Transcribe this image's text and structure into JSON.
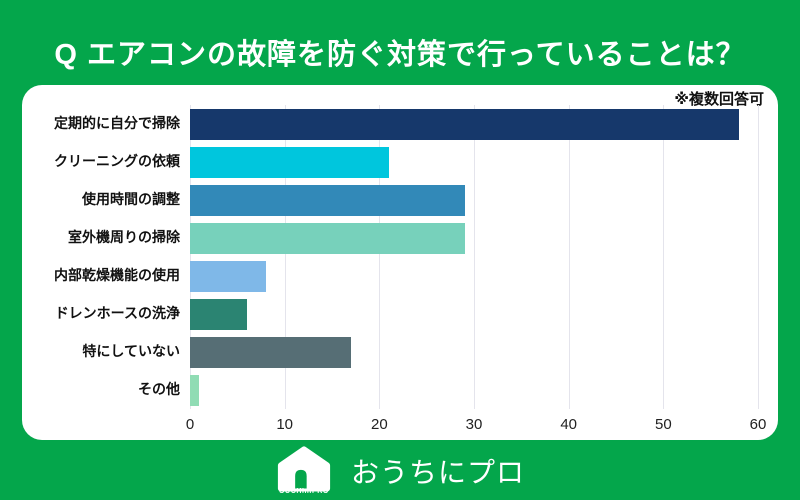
{
  "page": {
    "background_color": "#04a64b",
    "title": "Q エアコンの故障を防ぐ対策で行っていることは？",
    "note": "※複数回答可"
  },
  "chart_data": {
    "type": "bar",
    "orientation": "horizontal",
    "title": "エアコンの故障を防ぐ対策で行っていること",
    "note": "※複数回答可",
    "categories": [
      "定期的に自分で掃除",
      "クリーニングの依頼",
      "使用時間の調整",
      "室外機周りの掃除",
      "内部乾燥機能の使用",
      "ドレンホースの洗浄",
      "特にしていない",
      "その他"
    ],
    "values": [
      58,
      21,
      29,
      29,
      8,
      6,
      17,
      1
    ],
    "bar_colors": [
      "#16386b",
      "#00c6dd",
      "#3289b8",
      "#77d1bb",
      "#7fb8e8",
      "#2b8472",
      "#566e75",
      "#90dcb4"
    ],
    "xlabel": "",
    "ylabel": "",
    "xlim": [
      0,
      60
    ],
    "x_ticks": [
      0,
      10,
      20,
      30,
      40,
      50,
      60
    ],
    "grid": true,
    "legend": false
  },
  "footer": {
    "logo_small_text": "OUCHIniPRO",
    "logo_text": "おうちにプロ"
  }
}
